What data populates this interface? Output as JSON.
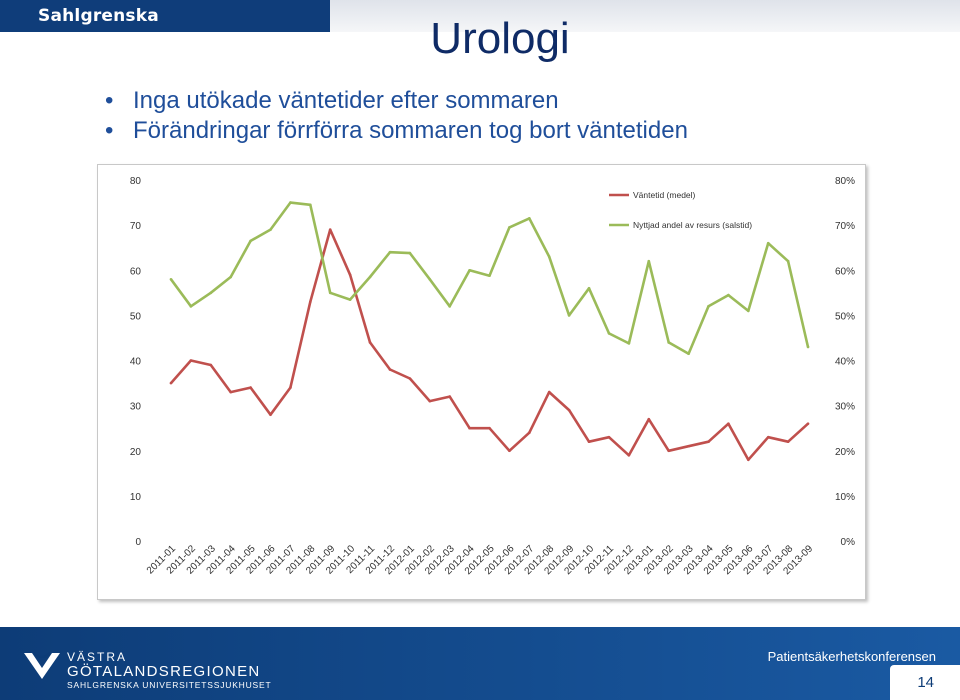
{
  "header": {
    "brand": "Sahlgrenska Universitetssjukhuset"
  },
  "slide": {
    "title": "Urologi",
    "bullets": [
      "Inga utökade väntetider efter sommaren",
      "Förändringar förrförra sommaren tog bort väntetiden"
    ]
  },
  "chart_data": {
    "type": "line",
    "categories": [
      "2011-01",
      "2011-02",
      "2011-03",
      "2011-04",
      "2011-05",
      "2011-06",
      "2011-07",
      "2011-08",
      "2011-09",
      "2011-10",
      "2011-11",
      "2011-12",
      "2012-01",
      "2012-02",
      "2012-03",
      "2012-04",
      "2012-05",
      "2012-06",
      "2012-07",
      "2012-08",
      "2012-09",
      "2012-10",
      "2012-11",
      "2012-12",
      "2013-01",
      "2013-02",
      "2013-03",
      "2013-04",
      "2013-05",
      "2013-06",
      "2013-07",
      "2013-08",
      "2013-09"
    ],
    "series": [
      {
        "name": "Väntetid (medel)",
        "axis": "left",
        "color": "#c0504d",
        "values": [
          35,
          40,
          39,
          33,
          34,
          28,
          34,
          53,
          69,
          59,
          44,
          38,
          36,
          31,
          32,
          25,
          25,
          20,
          24,
          33,
          29,
          22,
          23,
          19,
          27,
          20,
          21,
          22,
          26,
          18,
          23,
          22,
          26
        ]
      },
      {
        "name": "Nyttjad andel av resurs (salstid)",
        "axis": "right",
        "color": "#9bbb59",
        "values": [
          58,
          52,
          55,
          58.5,
          66.5,
          69,
          75,
          74.5,
          55,
          53.5,
          58.5,
          64,
          63.8,
          58,
          52,
          60,
          58.8,
          69.5,
          71.5,
          63,
          50,
          56,
          46,
          43.8,
          62,
          44,
          41.5,
          52,
          54.5,
          51,
          66,
          62,
          43
        ]
      }
    ],
    "yleft": {
      "ticks": [
        "0",
        "10",
        "20",
        "30",
        "40",
        "50",
        "60",
        "70",
        "80"
      ],
      "lim": [
        0,
        80
      ]
    },
    "yright": {
      "ticks": [
        "0%",
        "10%",
        "20%",
        "30%",
        "40%",
        "50%",
        "60%",
        "70%",
        "80%"
      ],
      "lim": [
        0,
        80
      ]
    },
    "legend": "top-right",
    "grid": false
  },
  "footer": {
    "org_line1": "VÄSTRA",
    "org_line2": "GÖTALANDSREGIONEN",
    "org_line3": "SAHLGRENSKA UNIVERSITETSSJUKHUSET",
    "conference": "Patientsäkerhetskonferensen",
    "page_number": "14"
  },
  "colors": {
    "brand_bar": "#0f3d7a",
    "footer": "#0d3c77",
    "title": "#0f2b66",
    "bullet_text": "#1f4e9a"
  }
}
